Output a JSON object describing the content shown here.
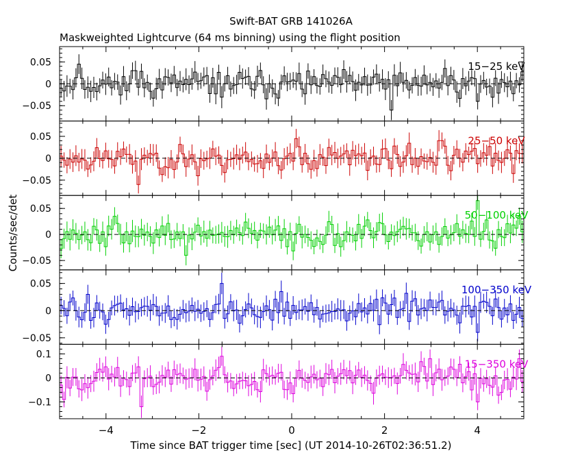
{
  "chart_data": {
    "type": "line",
    "title": "Swift-BAT GRB 141026A",
    "subtitle": "Maskweighted Lightcurve (64 ms binning) using the flight position",
    "xlabel": "Time since BAT trigger time [sec] (UT 2014-10-26T02:36:51.2)",
    "ylabel": "Counts/sec/det",
    "xlim": [
      -5,
      5
    ],
    "x_ticks": [
      -4,
      -2,
      0,
      2,
      4
    ],
    "x_tick_labels": [
      "−4",
      "−2",
      "0",
      "2",
      "4"
    ],
    "bin_width_sec": 0.064,
    "grid": false,
    "panels": [
      {
        "name": "15-25 keV",
        "label": "15−25 keV",
        "color": "#000000",
        "ylim": [
          -0.085,
          0.085
        ],
        "yticks": [
          -0.05,
          0,
          0.05
        ],
        "ytick_labels": [
          "−0.05",
          "0",
          "0.05"
        ],
        "amplitude": 0.02,
        "error": 0.021,
        "seed": 11,
        "spikes": [
          [
            -4.6,
            0.045
          ],
          [
            -3.4,
            0.03
          ],
          [
            2.15,
            -0.06
          ],
          [
            3.3,
            0.035
          ],
          [
            4.0,
            -0.04
          ]
        ]
      },
      {
        "name": "25-50 keV",
        "label": "25−50 keV",
        "color": "#cc0000",
        "ylim": [
          -0.085,
          0.085
        ],
        "yticks": [
          -0.05,
          0,
          0.05
        ],
        "ytick_labels": [
          "−0.05",
          "0",
          "0.05"
        ],
        "amplitude": 0.021,
        "error": 0.021,
        "seed": 23,
        "spikes": [
          [
            -3.3,
            -0.06
          ],
          [
            -2.0,
            -0.04
          ],
          [
            0.1,
            0.045
          ],
          [
            3.2,
            0.04
          ],
          [
            4.8,
            -0.035
          ]
        ]
      },
      {
        "name": "50-100 keV",
        "label": "50−100 keV",
        "color": "#00d000",
        "ylim": [
          -0.068,
          0.075
        ],
        "yticks": [
          -0.05,
          0,
          0.05
        ],
        "ytick_labels": [
          "−0.05",
          "0",
          "0.05"
        ],
        "amplitude": 0.017,
        "error": 0.018,
        "seed": 37,
        "spikes": [
          [
            -3.8,
            0.035
          ],
          [
            -2.3,
            -0.04
          ],
          [
            4.0,
            0.065
          ],
          [
            4.9,
            0.035
          ]
        ]
      },
      {
        "name": "100-350 keV",
        "label": "100−350 keV",
        "color": "#0000cc",
        "ylim": [
          -0.062,
          0.075
        ],
        "yticks": [
          -0.05,
          0,
          0.05
        ],
        "ytick_labels": [
          "−0.05",
          "0",
          "0.05"
        ],
        "amplitude": 0.016,
        "error": 0.017,
        "seed": 51,
        "spikes": [
          [
            -4.4,
            0.03
          ],
          [
            -1.5,
            0.05
          ],
          [
            -0.2,
            0.035
          ],
          [
            4.0,
            -0.04
          ]
        ]
      },
      {
        "name": "15-350 keV",
        "label": "15−350 keV",
        "color": "#dd00dd",
        "ylim": [
          -0.17,
          0.14
        ],
        "yticks": [
          -0.1,
          0,
          0.1
        ],
        "ytick_labels": [
          "−0.1",
          "0",
          "0.1"
        ],
        "amplitude": 0.038,
        "error": 0.04,
        "seed": 67,
        "spikes": [
          [
            -4.9,
            -0.09
          ],
          [
            -3.25,
            -0.12
          ],
          [
            -1.5,
            0.09
          ],
          [
            3.0,
            0.08
          ],
          [
            4.0,
            -0.1
          ],
          [
            4.9,
            0.08
          ]
        ]
      }
    ]
  }
}
